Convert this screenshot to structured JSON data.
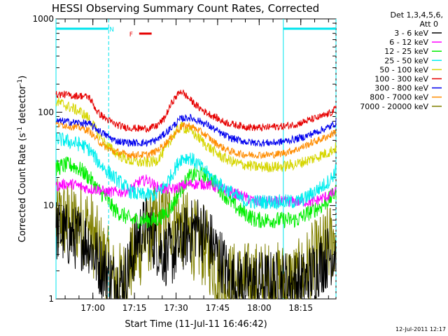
{
  "chart_data": {
    "type": "line",
    "title": "HESSI Observing Summary Count Rates, Corrected",
    "xlabel": "Start Time (11-Jul-11 16:46:42)",
    "ylabel": "Corrected Count Rate (s",
    "ylabel_exp1": "-1",
    "ylabel_mid": " detector",
    "ylabel_exp2": "-1",
    "ylabel_end": ")",
    "yscale": "log",
    "ylim": [
      1,
      1000
    ],
    "xlim_minutes": [
      0,
      101
    ],
    "xtick_labels": [
      "17:00",
      "17:15",
      "17:30",
      "17:45",
      "18:00",
      "18:15"
    ],
    "xtick_minutes": [
      13.3,
      28.3,
      43.3,
      58.3,
      73.3,
      88.3
    ],
    "ytick_labels": [
      "1",
      "10",
      "100",
      "1000"
    ],
    "ytick_values": [
      1,
      10,
      100,
      1000
    ],
    "grid": false,
    "legend_header": [
      "Det 1,3,4,5,6,",
      "Att 0"
    ],
    "legend_position": "right",
    "footer_date": "12-Jul-2011 12:17",
    "flags": [
      {
        "label": "N",
        "color": "#00e5ee",
        "segments": [
          [
            0,
            19
          ],
          [
            82,
            101
          ]
        ]
      },
      {
        "label": "F",
        "color": "#e60000",
        "segments": [
          [
            30,
            34.5
          ]
        ]
      }
    ],
    "night_markers_minutes": [
      0,
      19,
      82,
      101
    ],
    "x_minutes": [
      0,
      3,
      6,
      9,
      12,
      15,
      18,
      21,
      24,
      27,
      30,
      33,
      36,
      39,
      42,
      45,
      48,
      51,
      54,
      57,
      60,
      63,
      66,
      69,
      72,
      75,
      78,
      81,
      84,
      87,
      90,
      93,
      96,
      99,
      101
    ],
    "series": [
      {
        "name": "3 - 6 keV",
        "color": "#000000",
        "noise": 0.35,
        "values": [
          5.5,
          5,
          4.5,
          4.5,
          4,
          2.5,
          2,
          1.5,
          1.5,
          2.5,
          5,
          6,
          4,
          3,
          3,
          4,
          5,
          6,
          5,
          3.5,
          2.5,
          1.5,
          1.5,
          1.5,
          1.5,
          1.5,
          1.5,
          1.5,
          1.5,
          1.5,
          1.5,
          2,
          2.5,
          3,
          3.5
        ]
      },
      {
        "name": "6 - 12 keV",
        "color": "#ff00ff",
        "noise": 0.06,
        "values": [
          16,
          17,
          17,
          16,
          15,
          15,
          14,
          14,
          14,
          15,
          18,
          19,
          16,
          15,
          15,
          16,
          17,
          17,
          17,
          16,
          15,
          14,
          13,
          12,
          11,
          11,
          11,
          11,
          11,
          11,
          11,
          11,
          12,
          13,
          14
        ]
      },
      {
        "name": "12 - 25 keV",
        "color": "#00ee00",
        "noise": 0.09,
        "values": [
          25,
          27,
          27,
          24,
          20,
          15,
          12,
          9,
          8,
          7,
          7,
          7,
          7,
          8,
          10,
          15,
          20,
          22,
          21,
          18,
          14,
          11,
          9,
          8,
          7,
          7,
          7,
          7,
          7,
          7,
          8,
          9,
          10,
          12,
          14
        ]
      },
      {
        "name": "25 - 50 keV",
        "color": "#00eeee",
        "noise": 0.08,
        "values": [
          52,
          50,
          47,
          45,
          40,
          30,
          24,
          20,
          17,
          14,
          13,
          13,
          13,
          16,
          22,
          32,
          33,
          28,
          23,
          19,
          16,
          14,
          12,
          11,
          11,
          11,
          11,
          11,
          11,
          11,
          12,
          14,
          16,
          19,
          24
        ]
      },
      {
        "name": "50 - 100 keV",
        "color": "#d6d600",
        "noise": 0.06,
        "values": [
          130,
          120,
          110,
          100,
          85,
          60,
          45,
          38,
          33,
          30,
          29,
          29,
          30,
          38,
          55,
          70,
          65,
          55,
          45,
          38,
          33,
          30,
          28,
          27,
          26,
          26,
          26,
          26,
          27,
          28,
          30,
          32,
          35,
          38,
          42
        ]
      },
      {
        "name": "100 - 300 keV",
        "color": "#e60000",
        "noise": 0.04,
        "values": [
          155,
          155,
          150,
          150,
          145,
          100,
          85,
          75,
          70,
          68,
          67,
          67,
          70,
          85,
          130,
          170,
          140,
          115,
          100,
          90,
          80,
          75,
          72,
          70,
          68,
          68,
          70,
          70,
          72,
          75,
          80,
          85,
          90,
          98,
          110
        ]
      },
      {
        "name": "300 - 800 keV",
        "color": "#0000ee",
        "noise": 0.04,
        "values": [
          80,
          80,
          78,
          77,
          75,
          65,
          57,
          50,
          48,
          47,
          47,
          47,
          50,
          58,
          70,
          85,
          88,
          82,
          75,
          66,
          58,
          53,
          50,
          48,
          47,
          47,
          47,
          48,
          50,
          52,
          55,
          60,
          65,
          70,
          78
        ]
      },
      {
        "name": "800 - 7000 keV",
        "color": "#ff8c00",
        "noise": 0.04,
        "values": [
          75,
          73,
          70,
          68,
          63,
          50,
          42,
          38,
          36,
          35,
          35,
          35,
          38,
          45,
          55,
          70,
          72,
          65,
          57,
          48,
          42,
          38,
          36,
          35,
          35,
          35,
          35,
          36,
          38,
          40,
          44,
          48,
          52,
          57,
          63
        ]
      },
      {
        "name": "7000 - 20000 keV",
        "color": "#808000",
        "noise": 0.45,
        "values": [
          7,
          7,
          6.5,
          6.5,
          6,
          3.5,
          2.5,
          1.5,
          1.5,
          2.5,
          3.5,
          5,
          6,
          7,
          7,
          6,
          5,
          4,
          3.5,
          2.5,
          1.5,
          1.5,
          1.5,
          1.5,
          1.5,
          1.5,
          1.5,
          1.5,
          1.5,
          1.5,
          2,
          2.5,
          3,
          4,
          5
        ]
      }
    ]
  }
}
